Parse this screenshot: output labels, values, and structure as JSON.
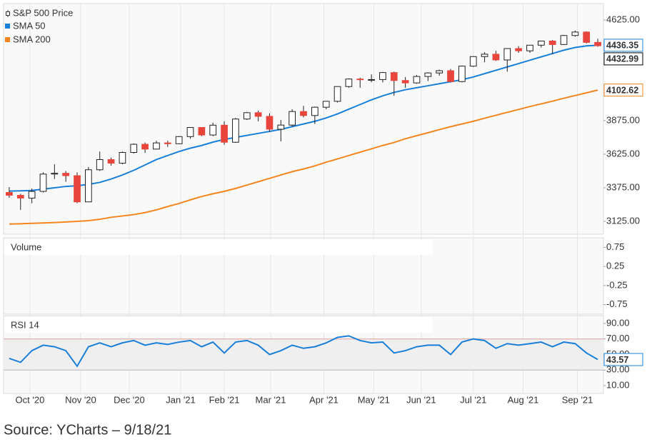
{
  "chart_data": [
    {
      "type": "candlestick",
      "name": "S&P 500 Price",
      "up_color": "#ffffff",
      "down_color": "#e8453c",
      "x": [
        0,
        1,
        2,
        3,
        4,
        5,
        6,
        7,
        8,
        9,
        10,
        11,
        12,
        13,
        14,
        15,
        16,
        17,
        18,
        19,
        20,
        21,
        22,
        23,
        24,
        25,
        26,
        27,
        28,
        29,
        30,
        31,
        32,
        33,
        34,
        35,
        36,
        37,
        38,
        39,
        40,
        41,
        42,
        43,
        44,
        45,
        46,
        47,
        48,
        49,
        50,
        51,
        52
      ],
      "open": [
        3340,
        3319,
        3298,
        3348,
        3477,
        3483,
        3465,
        3270,
        3509,
        3585,
        3558,
        3638,
        3699,
        3663,
        3709,
        3703,
        3756,
        3824,
        3768,
        3841,
        3714,
        3887,
        3934,
        3907,
        3811,
        3842,
        3943,
        3913,
        3975,
        4019,
        4129,
        4185,
        4180,
        4181,
        4233,
        4174,
        4156,
        4204,
        4230,
        4247,
        4166,
        4281,
        4352,
        4370,
        4327,
        4412,
        4395,
        4437,
        4468,
        4442,
        4509,
        4535,
        4458
      ],
      "high": [
        3380,
        3330,
        3370,
        3490,
        3550,
        3500,
        3490,
        3530,
        3645,
        3600,
        3645,
        3705,
        3712,
        3725,
        3725,
        3760,
        3826,
        3820,
        3860,
        3870,
        3895,
        3940,
        3950,
        3930,
        3880,
        3960,
        3985,
        3980,
        4020,
        4130,
        4190,
        4195,
        4220,
        4238,
        4240,
        4200,
        4215,
        4235,
        4255,
        4260,
        4286,
        4356,
        4385,
        4395,
        4415,
        4430,
        4440,
        4470,
        4475,
        4512,
        4546,
        4540,
        4485
      ],
      "low": [
        3300,
        3210,
        3260,
        3340,
        3440,
        3420,
        3260,
        3280,
        3500,
        3540,
        3550,
        3630,
        3635,
        3660,
        3680,
        3700,
        3740,
        3760,
        3760,
        3695,
        3710,
        3880,
        3870,
        3790,
        3720,
        3830,
        3900,
        3850,
        3960,
        4010,
        4120,
        4120,
        4160,
        4160,
        4060,
        4120,
        4150,
        4170,
        4210,
        4160,
        4160,
        4275,
        4310,
        4320,
        4240,
        4380,
        4380,
        4420,
        4370,
        4440,
        4500,
        4450,
        4425
      ],
      "close": [
        3319,
        3298,
        3348,
        3477,
        3483,
        3465,
        3270,
        3509,
        3585,
        3558,
        3638,
        3699,
        3663,
        3709,
        3703,
        3756,
        3824,
        3768,
        3841,
        3714,
        3887,
        3934,
        3907,
        3811,
        3842,
        3943,
        3913,
        3975,
        4019,
        4129,
        4185,
        4180,
        4181,
        4233,
        4174,
        4156,
        4204,
        4230,
        4247,
        4166,
        4281,
        4352,
        4370,
        4327,
        4412,
        4395,
        4437,
        4468,
        4442,
        4509,
        4535,
        4458,
        4432.99
      ],
      "series": [
        {
          "name": "SMA 50",
          "color": "#1a7fd8",
          "values": [
            3350,
            3352,
            3355,
            3365,
            3375,
            3385,
            3390,
            3400,
            3415,
            3440,
            3470,
            3505,
            3545,
            3585,
            3615,
            3645,
            3670,
            3690,
            3715,
            3735,
            3750,
            3765,
            3780,
            3795,
            3810,
            3830,
            3850,
            3870,
            3895,
            3925,
            3960,
            3995,
            4030,
            4060,
            4085,
            4105,
            4120,
            4135,
            4150,
            4165,
            4180,
            4200,
            4225,
            4250,
            4275,
            4300,
            4325,
            4350,
            4375,
            4400,
            4420,
            4432,
            4436.35
          ]
        },
        {
          "name": "SMA 200",
          "color": "#f5861f",
          "values": [
            3105,
            3107,
            3110,
            3113,
            3116,
            3120,
            3125,
            3130,
            3140,
            3155,
            3165,
            3175,
            3190,
            3210,
            3235,
            3258,
            3285,
            3310,
            3330,
            3348,
            3370,
            3395,
            3420,
            3445,
            3470,
            3495,
            3515,
            3538,
            3565,
            3590,
            3615,
            3640,
            3665,
            3690,
            3712,
            3740,
            3763,
            3785,
            3808,
            3830,
            3850,
            3870,
            3893,
            3915,
            3937,
            3958,
            3980,
            4000,
            4020,
            4042,
            4062,
            4082,
            4102.62
          ]
        }
      ],
      "xlim": [
        -0.5,
        52.5
      ],
      "ylim": [
        3029,
        4747
      ],
      "yticks": [
        {
          "value": 4625,
          "label": "4625.00"
        },
        {
          "value": 3875,
          "label": "3875.00"
        },
        {
          "value": 3625,
          "label": "3625.00"
        },
        {
          "value": 3375,
          "label": "3375.00"
        },
        {
          "value": 3125,
          "label": "3125.00"
        }
      ]
    },
    {
      "type": "bar",
      "title": "Volume",
      "ylim": [
        -1,
        1
      ],
      "yticks": [
        0.75,
        0.25,
        -0.25,
        -0.75
      ]
    },
    {
      "type": "line",
      "title": "RSI 14",
      "color": "#1a7fd8",
      "x": [
        0,
        1,
        2,
        3,
        4,
        5,
        6,
        7,
        8,
        9,
        10,
        11,
        12,
        13,
        14,
        15,
        16,
        17,
        18,
        19,
        20,
        21,
        22,
        23,
        24,
        25,
        26,
        27,
        28,
        29,
        30,
        31,
        32,
        33,
        34,
        35,
        36,
        37,
        38,
        39,
        40,
        41,
        42,
        43,
        44,
        45,
        46,
        47,
        48,
        49,
        50,
        51,
        52
      ],
      "values": [
        45,
        40,
        55,
        62,
        60,
        55,
        35,
        60,
        65,
        60,
        65,
        68,
        62,
        65,
        63,
        66,
        68,
        60,
        66,
        52,
        66,
        68,
        62,
        50,
        55,
        62,
        58,
        60,
        65,
        72,
        74,
        68,
        65,
        66,
        52,
        55,
        60,
        62,
        62,
        50,
        66,
        70,
        68,
        58,
        64,
        62,
        64,
        66,
        60,
        66,
        64,
        52,
        43.57
      ],
      "bands": [
        30,
        70
      ],
      "xlim": [
        -0.5,
        52.5
      ],
      "ylim": [
        0,
        100
      ],
      "yticks": [
        {
          "value": 90,
          "label": "90.00"
        },
        {
          "value": 70,
          "label": "70.00"
        },
        {
          "value": 50,
          "label": "50.00"
        },
        {
          "value": 30,
          "label": "30.00"
        },
        {
          "value": 10,
          "label": "10.00"
        }
      ],
      "xticks": [
        {
          "value": 1.83,
          "label": "Oct '20"
        },
        {
          "value": 6.31,
          "label": "Nov '20"
        },
        {
          "value": 10.6,
          "label": "Dec '20"
        },
        {
          "value": 15.15,
          "label": "Jan '21"
        },
        {
          "value": 19.0,
          "label": "Feb '21"
        },
        {
          "value": 23.1,
          "label": "Mar '21"
        },
        {
          "value": 27.8,
          "label": "Apr '21"
        },
        {
          "value": 32.2,
          "label": "May '21"
        },
        {
          "value": 36.4,
          "label": "Jun '21"
        },
        {
          "value": 41.0,
          "label": "Jul '21"
        },
        {
          "value": 45.4,
          "label": "Aug '21"
        },
        {
          "value": 50.2,
          "label": "Sep '21"
        }
      ]
    }
  ],
  "source": "Source: YCharts – 9/18/21"
}
